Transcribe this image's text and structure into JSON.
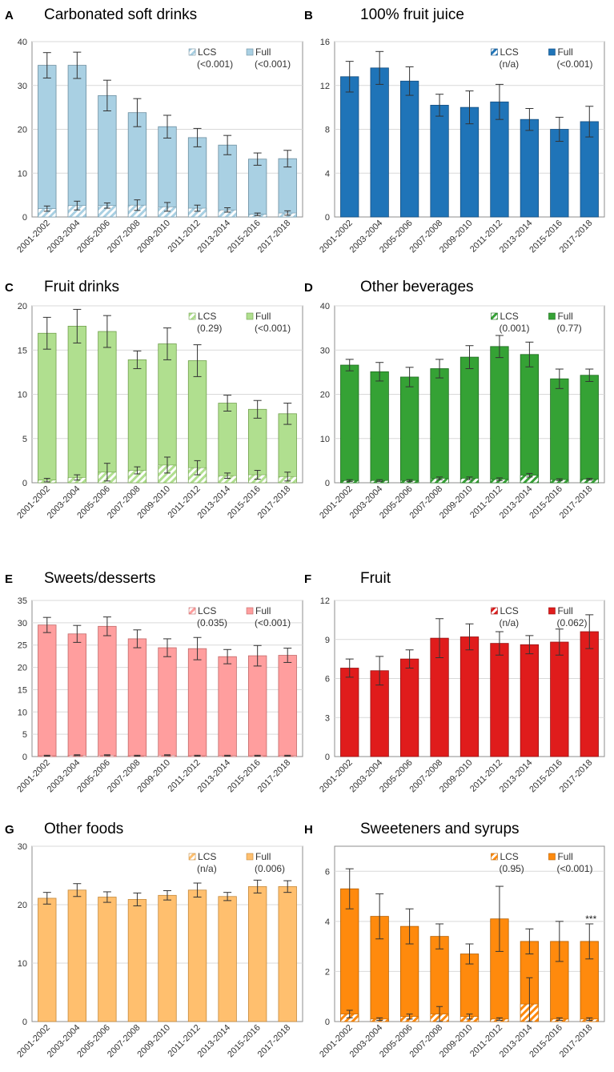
{
  "figure": {
    "series_names": [
      "LCS",
      "Full"
    ],
    "categories": [
      "2001-2002",
      "2003-2004",
      "2005-2006",
      "2007-2008",
      "2009-2010",
      "2011-2012",
      "2013-2014",
      "2015-2016",
      "2017-2018"
    ]
  },
  "chart_data": [
    {
      "panel": "A",
      "title": "Carbonated soft drinks",
      "type": "bar",
      "stacked": true,
      "categories": [
        "2001-2002",
        "2003-2004",
        "2005-2006",
        "2007-2008",
        "2009-2010",
        "2011-2012",
        "2013-2014",
        "2015-2016",
        "2017-2018"
      ],
      "ylim": [
        0,
        40
      ],
      "yticks": [
        0,
        10,
        20,
        30,
        40
      ],
      "ytick_labels": [
        "0",
        "10",
        "20",
        "30",
        "40"
      ],
      "grid": true,
      "colors": {
        "full": "#a9d0e3",
        "lcs": "#a9d0e3",
        "edge": "#6e8fa0"
      },
      "legend": {
        "lcs_label": "LCS",
        "lcs_p": "(<0.001)",
        "full_label": "Full",
        "full_p": "(<0.001)"
      },
      "series": [
        {
          "name": "LCS",
          "values": [
            1.9,
            2.6,
            2.6,
            2.7,
            2.3,
            2.0,
            1.6,
            0.6,
            0.9
          ],
          "err": [
            0.6,
            1.0,
            0.6,
            1.2,
            1.0,
            0.7,
            0.5,
            0.3,
            0.5
          ]
        },
        {
          "name": "Full",
          "values": [
            34.6,
            34.6,
            27.7,
            23.8,
            20.6,
            18.1,
            16.4,
            13.2,
            13.3
          ],
          "err": [
            2.9,
            3.0,
            3.5,
            3.2,
            2.6,
            2.1,
            2.2,
            1.4,
            1.9
          ]
        }
      ],
      "annotation": ""
    },
    {
      "panel": "B",
      "title": "100% fruit juice",
      "type": "bar",
      "stacked": true,
      "categories": [
        "2001-2002",
        "2003-2004",
        "2005-2006",
        "2007-2008",
        "2009-2010",
        "2011-2012",
        "2013-2014",
        "2015-2016",
        "2017-2018"
      ],
      "ylim": [
        0,
        16
      ],
      "yticks": [
        0,
        4,
        8,
        12,
        16
      ],
      "ytick_labels": [
        "0",
        "4",
        "8",
        "12",
        "16"
      ],
      "grid": true,
      "colors": {
        "full": "#1f74b8",
        "lcs": "#1f74b8",
        "edge": "#164f80"
      },
      "legend": {
        "lcs_label": "LCS",
        "lcs_p": "(n/a)",
        "full_label": "Full",
        "full_p": "(<0.001)"
      },
      "series": [
        {
          "name": "LCS",
          "values": [
            0,
            0,
            0,
            0,
            0,
            0,
            0,
            0,
            0
          ],
          "err": [
            0,
            0,
            0,
            0,
            0,
            0,
            0,
            0,
            0
          ]
        },
        {
          "name": "Full",
          "values": [
            12.8,
            13.6,
            12.4,
            10.2,
            10.0,
            10.5,
            8.9,
            8.0,
            8.7
          ],
          "err": [
            1.4,
            1.5,
            1.3,
            1.0,
            1.5,
            1.6,
            1.0,
            1.1,
            1.4
          ]
        }
      ],
      "annotation": ""
    },
    {
      "panel": "C",
      "title": "Fruit drinks",
      "type": "bar",
      "stacked": true,
      "categories": [
        "2001-2002",
        "2003-2004",
        "2005-2006",
        "2007-2008",
        "2009-2010",
        "2011-2012",
        "2013-2014",
        "2015-2016",
        "2017-2018"
      ],
      "ylim": [
        0,
        20
      ],
      "yticks": [
        0,
        5,
        10,
        15,
        20
      ],
      "ytick_labels": [
        "0",
        "5",
        "10",
        "15",
        "20"
      ],
      "grid": true,
      "colors": {
        "full": "#b0df8f",
        "lcs": "#b0df8f",
        "edge": "#72a04e"
      },
      "legend": {
        "lcs_label": "LCS",
        "lcs_p": "(0.29)",
        "full_label": "Full",
        "full_p": "(<0.001)"
      },
      "series": [
        {
          "name": "LCS",
          "values": [
            0.3,
            0.6,
            1.2,
            1.4,
            2.0,
            1.7,
            0.8,
            0.9,
            0.7
          ],
          "err": [
            0.2,
            0.3,
            1.0,
            0.4,
            0.9,
            0.8,
            0.3,
            0.5,
            0.5
          ]
        },
        {
          "name": "Full",
          "values": [
            16.9,
            17.7,
            17.1,
            13.9,
            15.7,
            13.8,
            9.0,
            8.3,
            7.8
          ],
          "err": [
            1.8,
            1.9,
            1.8,
            1.0,
            1.8,
            1.8,
            0.9,
            1.0,
            1.2
          ]
        }
      ],
      "annotation": ""
    },
    {
      "panel": "D",
      "title": "Other beverages",
      "type": "bar",
      "stacked": true,
      "categories": [
        "2001-2002",
        "2003-2004",
        "2005-2006",
        "2007-2008",
        "2009-2010",
        "2011-2012",
        "2013-2014",
        "2015-2016",
        "2017-2018"
      ],
      "ylim": [
        0,
        40
      ],
      "yticks": [
        0,
        10,
        20,
        30,
        40
      ],
      "ytick_labels": [
        "0",
        "10",
        "20",
        "30",
        "40"
      ],
      "grid": true,
      "colors": {
        "full": "#35a235",
        "lcs": "#35a235",
        "edge": "#1f6b1f"
      },
      "legend": {
        "lcs_label": "LCS",
        "lcs_p": "(0.001)",
        "full_label": "Full",
        "full_p": "(0.77)"
      },
      "series": [
        {
          "name": "LCS",
          "values": [
            0.5,
            0.5,
            0.5,
            1.0,
            1.0,
            0.8,
            1.7,
            0.7,
            0.8
          ],
          "err": [
            0.2,
            0.2,
            0.2,
            0.3,
            0.3,
            0.3,
            0.4,
            0.2,
            0.2
          ]
        },
        {
          "name": "Full",
          "values": [
            26.6,
            25.1,
            23.9,
            25.8,
            28.4,
            30.8,
            29.0,
            23.5,
            24.3
          ],
          "err": [
            1.3,
            2.1,
            2.2,
            2.1,
            2.6,
            2.5,
            2.8,
            2.2,
            1.4
          ]
        }
      ],
      "annotation": ""
    },
    {
      "panel": "E",
      "title": "Sweets/desserts",
      "type": "bar",
      "stacked": true,
      "categories": [
        "2001-2002",
        "2003-2004",
        "2005-2006",
        "2007-2008",
        "2009-2010",
        "2011-2012",
        "2013-2014",
        "2015-2016",
        "2017-2018"
      ],
      "ylim": [
        0,
        35
      ],
      "yticks": [
        0,
        5,
        10,
        15,
        20,
        25,
        30,
        35
      ],
      "ytick_labels": [
        "0",
        "5",
        "10",
        "15",
        "20",
        "25",
        "30",
        "35"
      ],
      "grid": true,
      "colors": {
        "full": "#ff9e9e",
        "lcs": "#ff9e9e",
        "edge": "#c26a6a"
      },
      "legend": {
        "lcs_label": "LCS",
        "lcs_p": "(0.035)",
        "full_label": "Full",
        "full_p": "(<0.001)"
      },
      "series": [
        {
          "name": "LCS",
          "values": [
            0.2,
            0.3,
            0.3,
            0.2,
            0.3,
            0.2,
            0.2,
            0.2,
            0.2
          ],
          "err": [
            0.1,
            0.1,
            0.1,
            0.1,
            0.1,
            0.1,
            0.1,
            0.1,
            0.1
          ]
        },
        {
          "name": "Full",
          "values": [
            29.5,
            27.5,
            29.2,
            26.4,
            24.4,
            24.2,
            22.4,
            22.6,
            22.7
          ],
          "err": [
            1.7,
            1.9,
            2.1,
            2.0,
            2.0,
            2.5,
            1.6,
            2.3,
            1.6
          ]
        }
      ],
      "annotation": ""
    },
    {
      "panel": "F",
      "title": "Fruit",
      "type": "bar",
      "stacked": true,
      "categories": [
        "2001-2002",
        "2003-2004",
        "2005-2006",
        "2007-2008",
        "2009-2010",
        "2011-2012",
        "2013-2014",
        "2015-2016",
        "2017-2018"
      ],
      "ylim": [
        0,
        12
      ],
      "yticks": [
        0,
        3,
        6,
        9,
        12
      ],
      "ytick_labels": [
        "0",
        "3",
        "6",
        "9",
        "12"
      ],
      "grid": true,
      "colors": {
        "full": "#e01c1c",
        "lcs": "#e01c1c",
        "edge": "#981010"
      },
      "legend": {
        "lcs_label": "LCS",
        "lcs_p": "(n/a)",
        "full_label": "Full",
        "full_p": "(0.062)"
      },
      "series": [
        {
          "name": "LCS",
          "values": [
            0,
            0,
            0,
            0,
            0,
            0,
            0,
            0,
            0
          ],
          "err": [
            0,
            0,
            0,
            0,
            0,
            0,
            0,
            0,
            0
          ]
        },
        {
          "name": "Full",
          "values": [
            6.8,
            6.6,
            7.5,
            9.1,
            9.2,
            8.7,
            8.6,
            8.8,
            9.6
          ],
          "err": [
            0.7,
            1.1,
            0.7,
            1.5,
            1.0,
            0.9,
            0.7,
            1.0,
            1.3
          ]
        }
      ],
      "annotation": ""
    },
    {
      "panel": "G",
      "title": "Other foods",
      "type": "bar",
      "stacked": true,
      "categories": [
        "2001-2002",
        "2003-2004",
        "2005-2006",
        "2007-2008",
        "2009-2010",
        "2011-2012",
        "2013-2014",
        "2015-2016",
        "2017-2018"
      ],
      "ylim": [
        0,
        30
      ],
      "yticks": [
        0,
        10,
        20,
        30
      ],
      "ytick_labels": [
        "0",
        "10",
        "20",
        "30"
      ],
      "grid": true,
      "colors": {
        "full": "#ffbf6e",
        "lcs": "#ffbf6e",
        "edge": "#c48a3e"
      },
      "legend": {
        "lcs_label": "LCS",
        "lcs_p": "(n/a)",
        "full_label": "Full",
        "full_p": "(0.006)"
      },
      "series": [
        {
          "name": "LCS",
          "values": [
            0,
            0,
            0,
            0,
            0,
            0,
            0,
            0,
            0
          ],
          "err": [
            0,
            0,
            0,
            0,
            0,
            0,
            0,
            0,
            0
          ]
        },
        {
          "name": "Full",
          "values": [
            21.1,
            22.5,
            21.3,
            20.9,
            21.6,
            22.5,
            21.4,
            23.1,
            23.1
          ],
          "err": [
            1.0,
            1.1,
            0.9,
            1.1,
            0.8,
            1.2,
            0.7,
            1.1,
            1.0
          ]
        }
      ],
      "annotation": ""
    },
    {
      "panel": "H",
      "title": "Sweeteners and syrups",
      "type": "bar",
      "stacked": true,
      "categories": [
        "2001-2002",
        "2003-2004",
        "2005-2006",
        "2007-2008",
        "2009-2010",
        "2011-2012",
        "2013-2014",
        "2015-2016",
        "2017-2018"
      ],
      "ylim": [
        0,
        7
      ],
      "yticks": [
        0,
        2,
        4,
        6
      ],
      "ytick_labels": [
        "0",
        "2",
        "4",
        "6"
      ],
      "grid": true,
      "colors": {
        "full": "#ff8a0d",
        "lcs": "#ff8a0d",
        "edge": "#b55f00"
      },
      "legend": {
        "lcs_label": "LCS",
        "lcs_p": "(0.95)",
        "full_label": "Full",
        "full_p": "(<0.001)"
      },
      "series": [
        {
          "name": "LCS",
          "values": [
            0.3,
            0.1,
            0.2,
            0.3,
            0.2,
            0.1,
            0.7,
            0.1,
            0.1
          ],
          "err": [
            0.15,
            0.05,
            0.1,
            0.3,
            0.1,
            0.05,
            1.05,
            0.05,
            0.05
          ]
        },
        {
          "name": "Full",
          "values": [
            5.3,
            4.2,
            3.8,
            3.4,
            2.7,
            4.1,
            3.2,
            3.2,
            3.2
          ],
          "err": [
            0.8,
            0.9,
            0.7,
            0.5,
            0.4,
            1.3,
            0.5,
            0.8,
            0.7
          ]
        }
      ],
      "annotation": "***"
    }
  ]
}
